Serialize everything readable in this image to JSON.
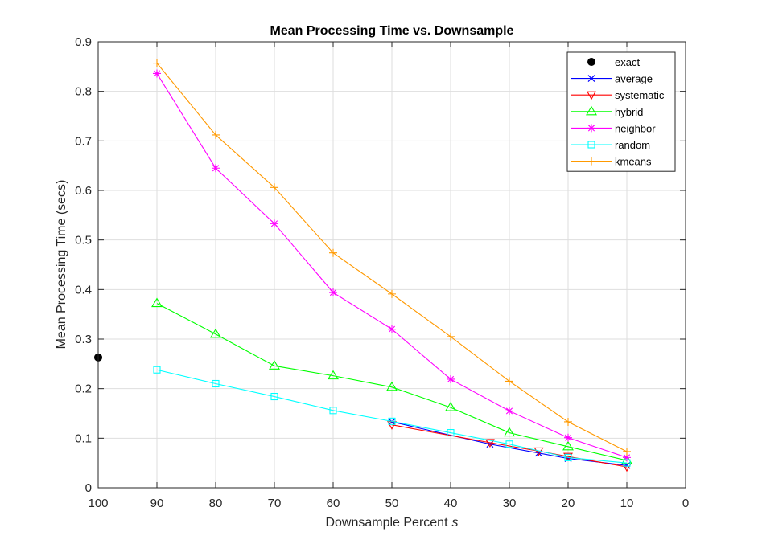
{
  "chart_data": {
    "type": "line",
    "title": "Mean Processing Time vs. Downsample",
    "xlabel": "Downsample Percent",
    "xlabel_var": "s",
    "ylabel": "Mean Processing Time (secs)",
    "xlim": [
      100,
      0
    ],
    "ylim": [
      0,
      0.9
    ],
    "x_reversed": true,
    "grid": true,
    "legend_position": "top-right",
    "xticks": [
      "100",
      "90",
      "80",
      "70",
      "60",
      "50",
      "40",
      "30",
      "20",
      "10",
      "0"
    ],
    "yticks": [
      "0",
      "0.1",
      "0.2",
      "0.3",
      "0.4",
      "0.5",
      "0.6",
      "0.7",
      "0.8",
      "0.9"
    ],
    "series": [
      {
        "name": "exact",
        "color": "#000000",
        "marker": "filled-circle",
        "x": [
          100
        ],
        "y": [
          0.263
        ]
      },
      {
        "name": "average",
        "color": "#0000ff",
        "marker": "x",
        "x": [
          50,
          33.3,
          25,
          20,
          10
        ],
        "y": [
          0.133,
          0.088,
          0.07,
          0.059,
          0.045
        ]
      },
      {
        "name": "systematic",
        "color": "#ff0000",
        "marker": "triangle-down",
        "x": [
          50,
          33.3,
          25,
          20,
          10
        ],
        "y": [
          0.127,
          0.091,
          0.074,
          0.063,
          0.042
        ]
      },
      {
        "name": "hybrid",
        "color": "#00ff00",
        "marker": "triangle-up",
        "x": [
          90,
          80,
          70,
          60,
          50,
          40,
          30,
          20,
          10
        ],
        "y": [
          0.372,
          0.31,
          0.246,
          0.226,
          0.203,
          0.162,
          0.111,
          0.083,
          0.055
        ]
      },
      {
        "name": "neighbor",
        "color": "#ff00ff",
        "marker": "asterisk",
        "x": [
          90,
          80,
          70,
          60,
          50,
          40,
          30,
          20,
          10
        ],
        "y": [
          0.836,
          0.645,
          0.533,
          0.394,
          0.32,
          0.219,
          0.155,
          0.101,
          0.061
        ]
      },
      {
        "name": "random",
        "color": "#00ffff",
        "marker": "square",
        "x": [
          90,
          80,
          70,
          60,
          50,
          40,
          30,
          20,
          10
        ],
        "y": [
          0.238,
          0.21,
          0.184,
          0.156,
          0.134,
          0.111,
          0.088,
          0.061,
          0.05
        ]
      },
      {
        "name": "kmeans",
        "color": "#ff9900",
        "marker": "plus",
        "x": [
          90,
          80,
          70,
          60,
          50,
          40,
          30,
          20,
          10
        ],
        "y": [
          0.857,
          0.712,
          0.606,
          0.474,
          0.391,
          0.305,
          0.215,
          0.133,
          0.073
        ]
      }
    ]
  }
}
